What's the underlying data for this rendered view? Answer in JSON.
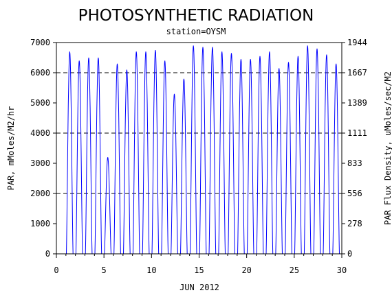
{
  "chart_data": {
    "type": "line",
    "title": "PHOTOSYNTHETIC RADIATION",
    "subtitle": "station=OYSM",
    "xlabel": "JUN 2012",
    "ylabel_left": "PAR, mMoles/M2/hr",
    "ylabel_right": "PAR Flux Density, uMoles/sec/M2",
    "xlim": [
      0,
      30
    ],
    "ylim": [
      0,
      7000
    ],
    "x_ticks": [
      "0",
      "5",
      "10",
      "15",
      "20",
      "25",
      "30"
    ],
    "y_ticks_left": [
      "0",
      "1000",
      "2000",
      "3000",
      "4000",
      "5000",
      "6000",
      "7000"
    ],
    "y_ticks_right": [
      "0",
      "278",
      "556",
      "833",
      "1111",
      "1389",
      "1667",
      "1944"
    ],
    "gridlines_y": [
      2000,
      4000,
      6000
    ],
    "grid": "dashed horizontal",
    "line_color": "#0000ff",
    "series": [
      {
        "daily_peaks": [
          {
            "day": 1,
            "peak": 6700
          },
          {
            "day": 2,
            "peak": 6400
          },
          {
            "day": 3,
            "peak": 6500
          },
          {
            "day": 4,
            "peak": 6500
          },
          {
            "day": 5,
            "peak": 3200
          },
          {
            "day": 6,
            "peak": 6300
          },
          {
            "day": 7,
            "peak": 6100
          },
          {
            "day": 8,
            "peak": 6700
          },
          {
            "day": 9,
            "peak": 6700
          },
          {
            "day": 10,
            "peak": 6750
          },
          {
            "day": 11,
            "peak": 6400
          },
          {
            "day": 12,
            "peak": 5300
          },
          {
            "day": 13,
            "peak": 5800
          },
          {
            "day": 14,
            "peak": 6900
          },
          {
            "day": 15,
            "peak": 6850
          },
          {
            "day": 16,
            "peak": 6850
          },
          {
            "day": 17,
            "peak": 6700
          },
          {
            "day": 18,
            "peak": 6650
          },
          {
            "day": 19,
            "peak": 6450
          },
          {
            "day": 20,
            "peak": 6450
          },
          {
            "day": 21,
            "peak": 6550
          },
          {
            "day": 22,
            "peak": 6700
          },
          {
            "day": 23,
            "peak": 6150
          },
          {
            "day": 24,
            "peak": 6350
          },
          {
            "day": 25,
            "peak": 6550
          },
          {
            "day": 26,
            "peak": 6900
          },
          {
            "day": 27,
            "peak": 6800
          },
          {
            "day": 28,
            "peak": 6600
          },
          {
            "day": 29,
            "peak": 6300
          }
        ]
      }
    ]
  }
}
